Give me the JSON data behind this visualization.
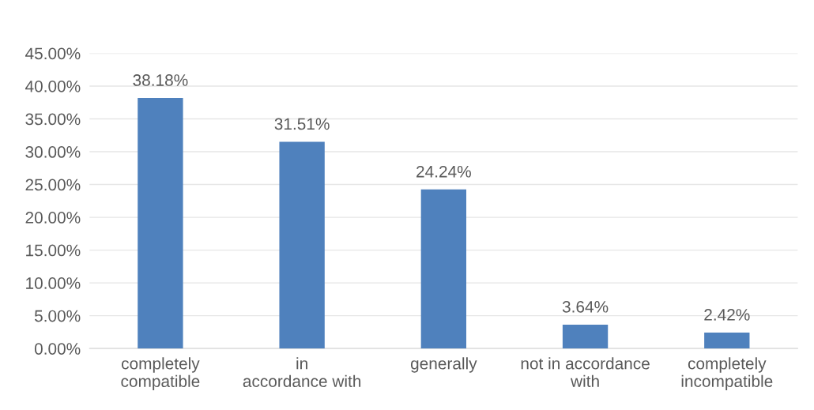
{
  "chart_data": {
    "type": "bar",
    "categories": [
      "completely compatible",
      "in accordance with",
      "generally",
      "not in accordance with",
      "completely incompatible"
    ],
    "values": [
      38.18,
      31.51,
      24.24,
      3.64,
      2.42
    ],
    "value_labels": [
      "38.18%",
      "31.51%",
      "24.24%",
      "3.64%",
      "2.42%"
    ],
    "color": "#4f81bd",
    "ylim": [
      0,
      45
    ],
    "yticks": [
      {
        "value": 0,
        "label": "0.00%"
      },
      {
        "value": 5,
        "label": "5.00%"
      },
      {
        "value": 10,
        "label": "10.00%"
      },
      {
        "value": 15,
        "label": "15.00%"
      },
      {
        "value": 20,
        "label": "20.00%"
      },
      {
        "value": 25,
        "label": "25.00%"
      },
      {
        "value": 30,
        "label": "30.00%"
      },
      {
        "value": 35,
        "label": "35.00%"
      },
      {
        "value": 40,
        "label": "40.00%"
      },
      {
        "value": 45,
        "label": "45.00%"
      }
    ],
    "grid": "y"
  }
}
